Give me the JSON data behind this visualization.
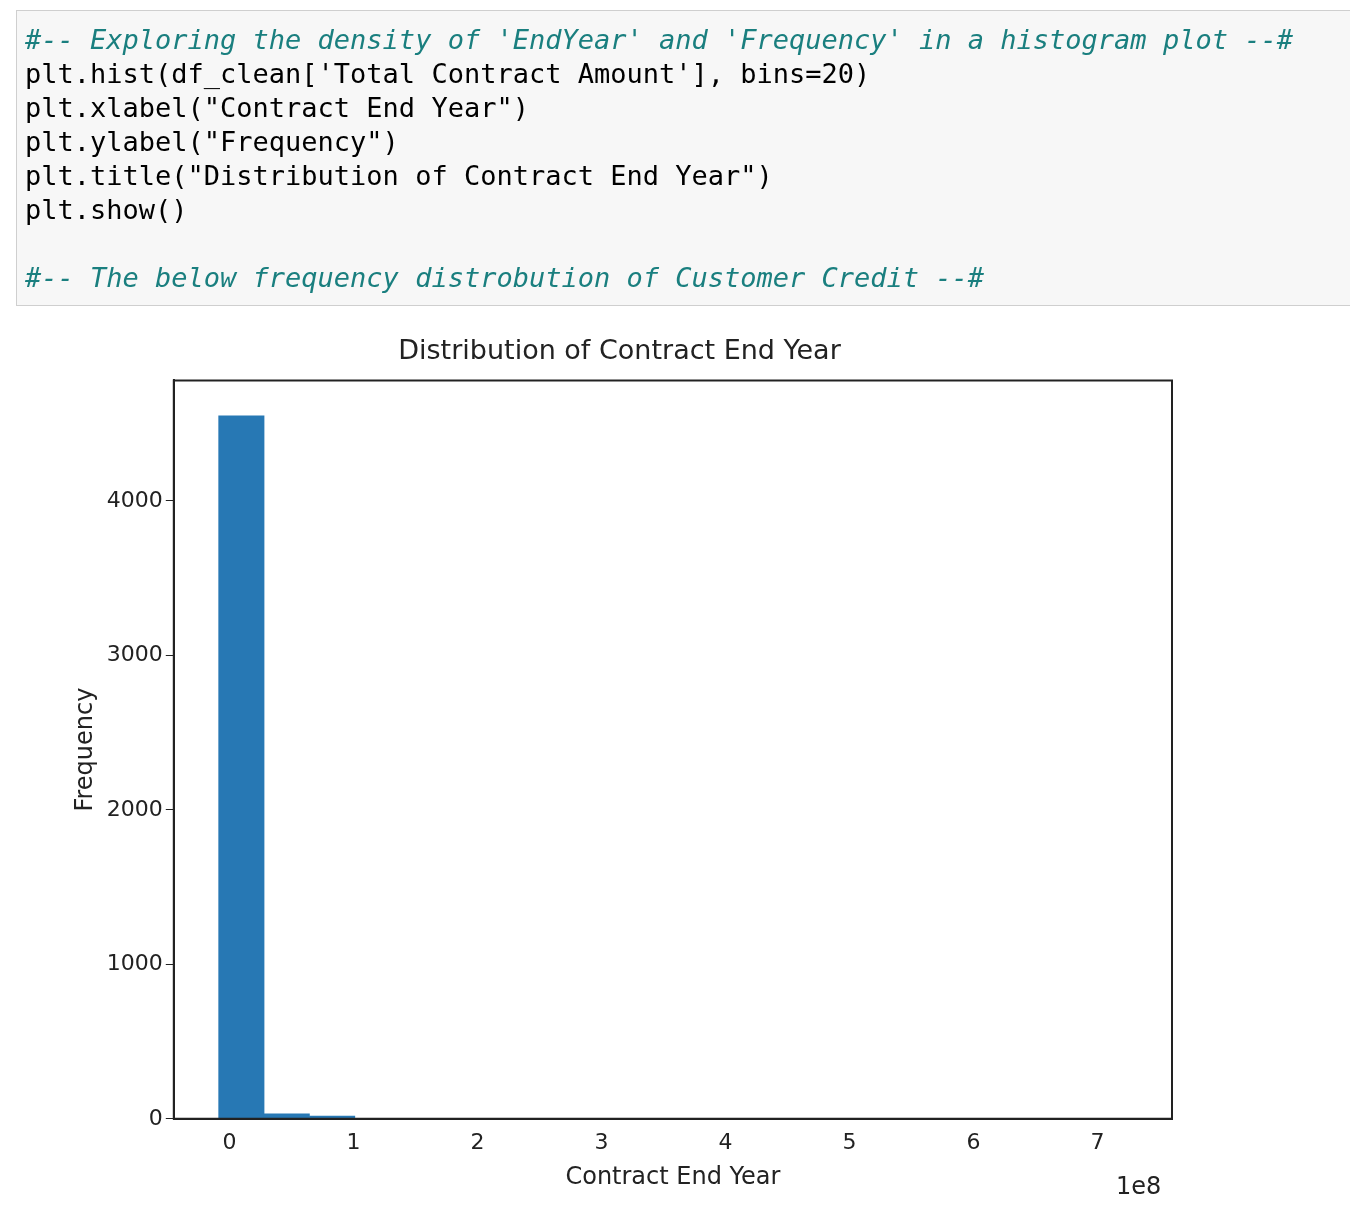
{
  "chart_data": {
    "type": "histogram",
    "title": "Distribution of Contract End Year",
    "xlabel": "Contract End Year",
    "ylabel": "Frequency",
    "bins": [
      -0.088,
      0.278,
      0.644,
      1.01,
      1.376,
      1.742,
      2.108,
      2.474,
      2.84,
      3.206,
      3.572,
      3.938,
      4.304,
      4.67,
      5.036,
      5.402,
      5.768,
      6.134,
      6.5,
      6.866,
      7.232
    ],
    "values": [
      4550,
      32,
      17,
      0,
      0,
      0,
      0,
      0,
      0,
      0,
      0,
      0,
      0,
      0,
      0,
      0,
      0,
      0,
      0,
      0
    ],
    "color": "#2778b4",
    "xlim": [
      -0.45,
      7.6
    ],
    "xticks": [
      0,
      1,
      2,
      3,
      4,
      5,
      6,
      7
    ],
    "ylim": [
      0,
      4780
    ],
    "yticks": [
      0,
      {
        "value": 1000,
        "label": "1000"
      },
      {
        "value": 2000,
        "label": "2000"
      },
      {
        "value": 3000,
        "label": "3000"
      },
      {
        "value": 4000,
        "label": "4000"
      }
    ],
    "grid": false,
    "annotations": [
      "1e8",
      "#-- Exploring the density of 'EndYear' and 'Frequency' in a histogram plot --#",
      "plt.hist(df_clean['Total Contract Amount'], bins=20)",
      "plt.xlabel(\"Contract End Year\")",
      "plt.ylabel(\"Frequency\")",
      "plt.title(\"Distribution of Contract End Year\")",
      "plt.show()",
      "#-- The below frequency distrobution of Customer Credit --#"
    ]
  }
}
